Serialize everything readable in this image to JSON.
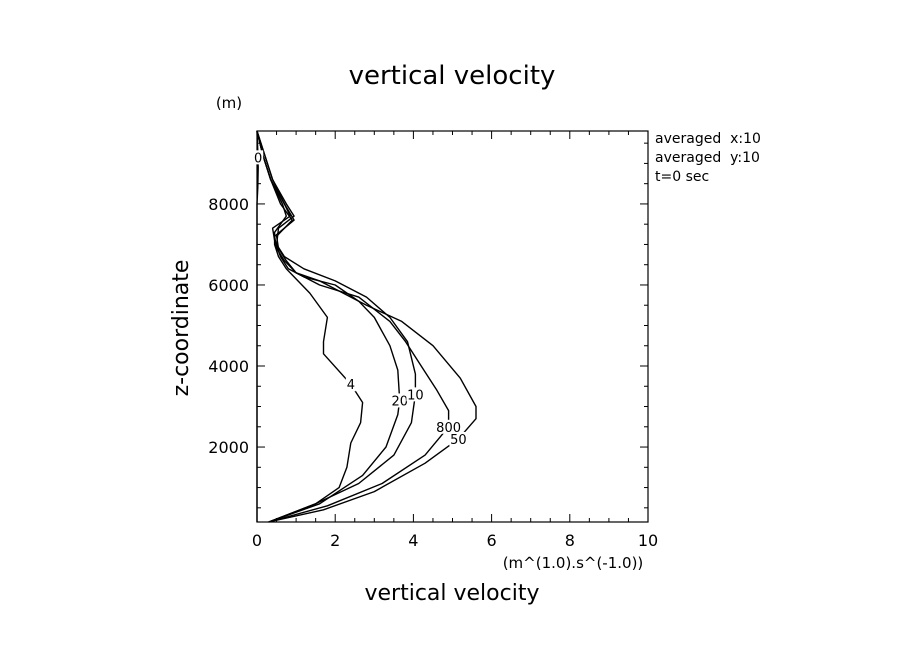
{
  "chart_data": {
    "type": "line",
    "title": "vertical velocity",
    "xlabel": "vertical velocity",
    "xunit": "(m^(1.0).s^(-1.0))",
    "ylabel": "z-coordinate",
    "yunit": "(m)",
    "xlim": [
      0,
      10
    ],
    "ylim": [
      150,
      9800
    ],
    "xticks": [
      0,
      2,
      4,
      6,
      8,
      10
    ],
    "yticks": [
      2000,
      4000,
      6000,
      8000
    ],
    "grid": false,
    "annotations": [
      "averaged  x:10",
      "averaged  y:10",
      "t=0 sec"
    ],
    "series": [
      {
        "label": "0",
        "label_at": [
          0.03,
          9150
        ],
        "points": [
          [
            0.0,
            9800
          ],
          [
            0.02,
            9300
          ],
          [
            0.02,
            9150
          ],
          [
            0.03,
            8900
          ],
          [
            0.02,
            8400
          ],
          [
            0.0,
            8000
          ],
          [
            0.0,
            7000
          ],
          [
            0.0,
            6000
          ],
          [
            0.0,
            5500
          ],
          [
            0.0,
            5200
          ],
          [
            0.0,
            5000
          ],
          [
            0.0,
            4000
          ],
          [
            0.0,
            3000
          ],
          [
            0.0,
            2000
          ],
          [
            0.0,
            1000
          ],
          [
            0.0,
            150
          ]
        ]
      },
      {
        "label": "4",
        "label_at": [
          2.4,
          3550
        ],
        "points": [
          [
            0.0,
            9800
          ],
          [
            0.15,
            9200
          ],
          [
            0.35,
            8600
          ],
          [
            0.65,
            8000
          ],
          [
            0.75,
            7700
          ],
          [
            0.45,
            7300
          ],
          [
            0.45,
            7000
          ],
          [
            0.55,
            6700
          ],
          [
            0.75,
            6400
          ],
          [
            0.95,
            6200
          ],
          [
            1.35,
            5800
          ],
          [
            1.8,
            5200
          ],
          [
            1.7,
            4600
          ],
          [
            1.7,
            4300
          ],
          [
            2.4,
            3550
          ],
          [
            2.7,
            3100
          ],
          [
            2.65,
            2600
          ],
          [
            2.4,
            2100
          ],
          [
            2.3,
            1500
          ],
          [
            2.1,
            1000
          ],
          [
            1.5,
            600
          ],
          [
            0.3,
            150
          ]
        ]
      },
      {
        "label": "20",
        "label_at": [
          3.65,
          3150
        ],
        "points": [
          [
            0.0,
            9800
          ],
          [
            0.15,
            9200
          ],
          [
            0.35,
            8600
          ],
          [
            0.7,
            8000
          ],
          [
            0.85,
            7700
          ],
          [
            0.4,
            7400
          ],
          [
            0.45,
            7100
          ],
          [
            0.6,
            6700
          ],
          [
            0.8,
            6400
          ],
          [
            1.2,
            6200
          ],
          [
            2.0,
            6000
          ],
          [
            2.6,
            5600
          ],
          [
            3.0,
            5200
          ],
          [
            3.4,
            4500
          ],
          [
            3.6,
            3900
          ],
          [
            3.65,
            3150
          ],
          [
            3.6,
            2800
          ],
          [
            3.3,
            2000
          ],
          [
            2.7,
            1300
          ],
          [
            1.6,
            600
          ],
          [
            0.3,
            150
          ]
        ]
      },
      {
        "label": "10",
        "label_at": [
          4.05,
          3300
        ],
        "points": [
          [
            0.0,
            9800
          ],
          [
            0.2,
            9200
          ],
          [
            0.4,
            8600
          ],
          [
            0.75,
            8000
          ],
          [
            0.95,
            7700
          ],
          [
            0.55,
            7400
          ],
          [
            0.5,
            7000
          ],
          [
            0.7,
            6700
          ],
          [
            1.2,
            6400
          ],
          [
            2.0,
            6100
          ],
          [
            2.8,
            5700
          ],
          [
            3.4,
            5200
          ],
          [
            3.85,
            4600
          ],
          [
            4.05,
            3800
          ],
          [
            4.05,
            3300
          ],
          [
            3.95,
            2600
          ],
          [
            3.5,
            1800
          ],
          [
            2.6,
            1100
          ],
          [
            1.5,
            600
          ],
          [
            0.3,
            150
          ]
        ]
      },
      {
        "label": "800",
        "label_at": [
          4.9,
          2500
        ],
        "points": [
          [
            0.0,
            9800
          ],
          [
            0.15,
            9200
          ],
          [
            0.35,
            8600
          ],
          [
            0.6,
            8000
          ],
          [
            0.9,
            7600
          ],
          [
            0.5,
            7200
          ],
          [
            0.55,
            6900
          ],
          [
            0.75,
            6600
          ],
          [
            1.0,
            6300
          ],
          [
            1.6,
            6000
          ],
          [
            2.6,
            5700
          ],
          [
            3.4,
            5100
          ],
          [
            3.8,
            4600
          ],
          [
            4.2,
            4000
          ],
          [
            4.6,
            3400
          ],
          [
            4.9,
            2900
          ],
          [
            4.9,
            2500
          ],
          [
            4.3,
            1800
          ],
          [
            3.2,
            1100
          ],
          [
            1.8,
            550
          ],
          [
            0.3,
            150
          ]
        ]
      },
      {
        "label": "50",
        "label_at": [
          5.15,
          2200
        ],
        "points": [
          [
            0.0,
            9800
          ],
          [
            0.2,
            9200
          ],
          [
            0.4,
            8600
          ],
          [
            0.7,
            8000
          ],
          [
            0.95,
            7600
          ],
          [
            0.45,
            7200
          ],
          [
            0.5,
            6900
          ],
          [
            0.7,
            6600
          ],
          [
            1.0,
            6300
          ],
          [
            1.6,
            6100
          ],
          [
            2.8,
            5500
          ],
          [
            3.7,
            5100
          ],
          [
            4.5,
            4500
          ],
          [
            5.2,
            3700
          ],
          [
            5.6,
            3000
          ],
          [
            5.6,
            2700
          ],
          [
            5.15,
            2200
          ],
          [
            4.3,
            1600
          ],
          [
            3.0,
            900
          ],
          [
            1.7,
            450
          ],
          [
            0.3,
            150
          ]
        ]
      }
    ]
  }
}
